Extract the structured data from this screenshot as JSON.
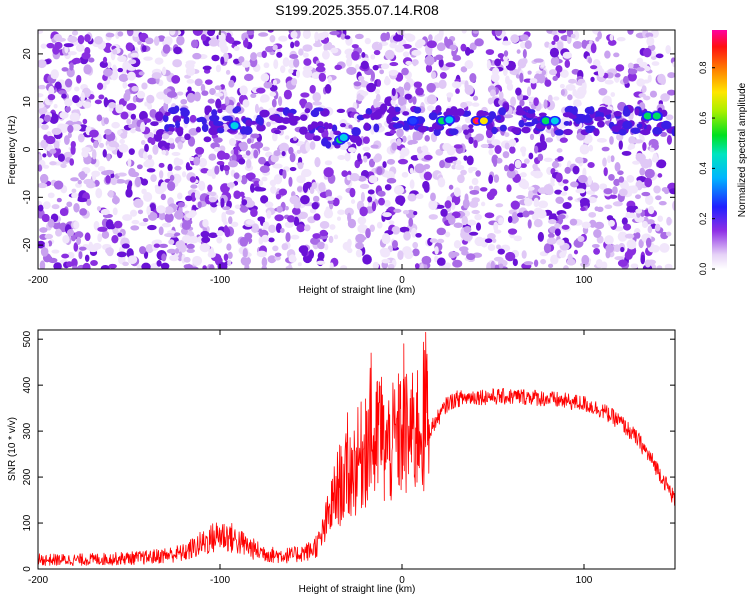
{
  "title": "S199.2025.355.07.14.R08",
  "chart_data": [
    {
      "type": "heatmap",
      "name": "spectrogram",
      "xlabel": "Height of straight line (km)",
      "ylabel": "Frequency (Hz)",
      "xlim": [
        -200,
        150
      ],
      "ylim": [
        -25,
        25
      ],
      "x_ticks": [
        -200,
        -100,
        0,
        100
      ],
      "y_ticks": [
        -20,
        -10,
        0,
        10,
        20
      ],
      "colorbar": {
        "label": "Normalized spectral amplitude",
        "range": [
          0.0,
          0.95
        ],
        "ticks": [
          0.0,
          0.2,
          0.4,
          0.6,
          0.8
        ]
      },
      "signal_band": {
        "description": "coherent tone near +6 Hz visible from about -130 km upward",
        "x_range": [
          -130,
          150
        ],
        "frequency_hz": 6
      },
      "peaks": [
        {
          "x": -92,
          "y": 5,
          "amplitude": 0.4
        },
        {
          "x": -34,
          "y": 2,
          "amplitude": 0.5
        },
        {
          "x": -32,
          "y": 2.5,
          "amplitude": 0.45
        },
        {
          "x": 6,
          "y": 6,
          "amplitude": 0.3
        },
        {
          "x": 22,
          "y": 6,
          "amplitude": 0.55
        },
        {
          "x": 26,
          "y": 6.2,
          "amplitude": 0.45
        },
        {
          "x": 41,
          "y": 6,
          "amplitude": 0.85
        },
        {
          "x": 45,
          "y": 6,
          "amplitude": 0.7
        },
        {
          "x": 79,
          "y": 6,
          "amplitude": 0.5
        },
        {
          "x": 84,
          "y": 6,
          "amplitude": 0.45
        },
        {
          "x": 135,
          "y": 7,
          "amplitude": 0.6
        },
        {
          "x": 140,
          "y": 7,
          "amplitude": 0.5
        }
      ]
    },
    {
      "type": "line",
      "name": "snr",
      "xlabel": "Height of straight line (km)",
      "ylabel": "SNR (10 * v/v)",
      "xlim": [
        -200,
        150
      ],
      "ylim": [
        0,
        520
      ],
      "x_ticks": [
        -200,
        -100,
        0,
        100
      ],
      "y_ticks": [
        0,
        100,
        200,
        300,
        400,
        500
      ],
      "color": "#ff0000",
      "series": [
        {
          "name": "SNR",
          "x": [
            -200,
            -180,
            -160,
            -140,
            -120,
            -110,
            -100,
            -95,
            -90,
            -80,
            -70,
            -60,
            -50,
            -45,
            -40,
            -35,
            -30,
            -25,
            -20,
            -17,
            -15,
            -12,
            -10,
            -5,
            0,
            5,
            10,
            13,
            15,
            20,
            25,
            30,
            40,
            50,
            60,
            70,
            80,
            90,
            100,
            110,
            120,
            130,
            140,
            150
          ],
          "y": [
            20,
            20,
            22,
            25,
            35,
            55,
            75,
            70,
            60,
            40,
            30,
            30,
            40,
            60,
            120,
            180,
            200,
            230,
            260,
            300,
            250,
            320,
            260,
            270,
            300,
            280,
            320,
            340,
            300,
            330,
            360,
            370,
            375,
            375,
            375,
            375,
            370,
            365,
            360,
            345,
            320,
            280,
            220,
            150
          ]
        }
      ],
      "spikes": [
        {
          "x": -30,
          "y": 340
        },
        {
          "x": -20,
          "y": 370
        },
        {
          "x": -17,
          "y": 470
        },
        {
          "x": -10,
          "y": 350
        },
        {
          "x": 1,
          "y": 490
        },
        {
          "x": 5,
          "y": 390
        },
        {
          "x": 13,
          "y": 515
        },
        {
          "x": 14,
          "y": 430
        },
        {
          "x": 12,
          "y": 170
        }
      ]
    }
  ]
}
